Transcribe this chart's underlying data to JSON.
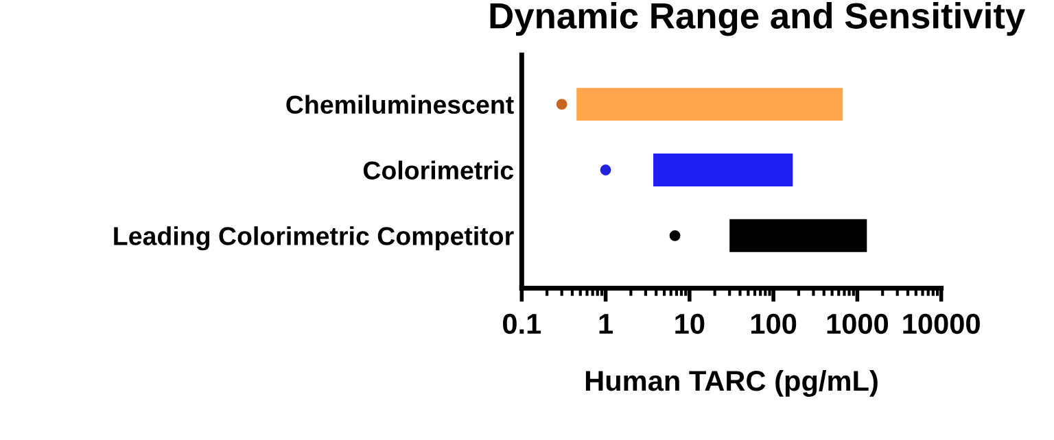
{
  "chart_data": {
    "type": "bar",
    "orientation": "horizontal",
    "title": "Dynamic Range and Sensitivity",
    "xlabel": "Human TARC (pg/mL)",
    "categories": [
      "Chemiluminescent",
      "Colorimetric",
      "Leading Colorimetric Competitor"
    ],
    "log": "x",
    "xlim": [
      0.1,
      10000
    ],
    "xticks": [
      0.1,
      1,
      10,
      100,
      1000,
      10000
    ],
    "grid": false,
    "legend": false,
    "series": [
      {
        "values": [
          669.55,
          166.3,
          1270
        ],
        "base": [
          0.45,
          3.7,
          30
        ],
        "colors": [
          "#ffa54c",
          "#1f1ff5",
          "#000000"
        ]
      },
      {
        "type": "scatter",
        "x": [
          "Chemiluminescent",
          "Colorimetric",
          "Leading Colorimetric Competitor"
        ],
        "values": [
          0.3,
          1,
          6.7
        ],
        "colors": [
          "#c8651e",
          "#2222dd",
          "#000000"
        ],
        "marker": "circle"
      }
    ]
  }
}
